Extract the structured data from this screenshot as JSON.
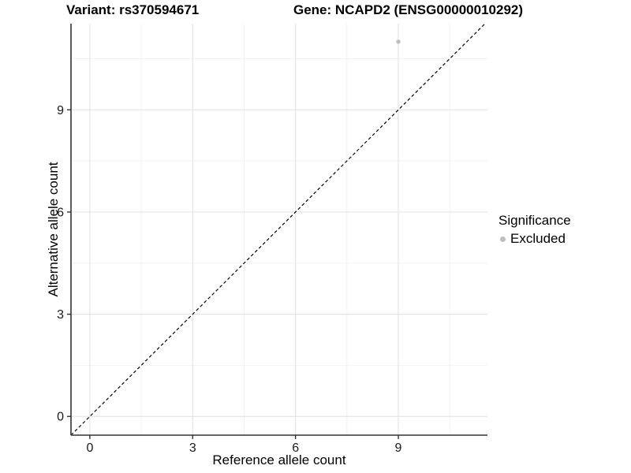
{
  "titles": {
    "left": "Variant: rs370594671",
    "right": "Gene: NCAPD2 (ENSG00000010292)"
  },
  "chart_data": {
    "type": "scatter",
    "xlabel": "Reference allele count",
    "ylabel": "Alternative allele count",
    "xlim": [
      -0.55,
      11.6
    ],
    "ylim": [
      -0.55,
      11.53
    ],
    "x_ticks": [
      0,
      3,
      6,
      9
    ],
    "y_ticks": [
      0,
      3,
      6,
      9
    ],
    "grid": "on",
    "series": [
      {
        "name": "Excluded",
        "points": [
          {
            "x": 9,
            "y": 11
          }
        ],
        "color": "#bebebe"
      }
    ],
    "reference_line": {
      "description": "identity line y = x",
      "slope": 1,
      "intercept": 0,
      "style": "dashed",
      "color": "#000000"
    },
    "legend": {
      "title": "Significance",
      "position": "right",
      "items": [
        {
          "label": "Excluded",
          "color": "#bebebe"
        }
      ]
    },
    "colors": {
      "background": "#ffffff",
      "grid_major": "#e4e4e4",
      "grid_minor": "#f2f2f2",
      "axis_line": "#333333",
      "tick_label": "#1a1a1a",
      "point": "#bebebe"
    }
  }
}
